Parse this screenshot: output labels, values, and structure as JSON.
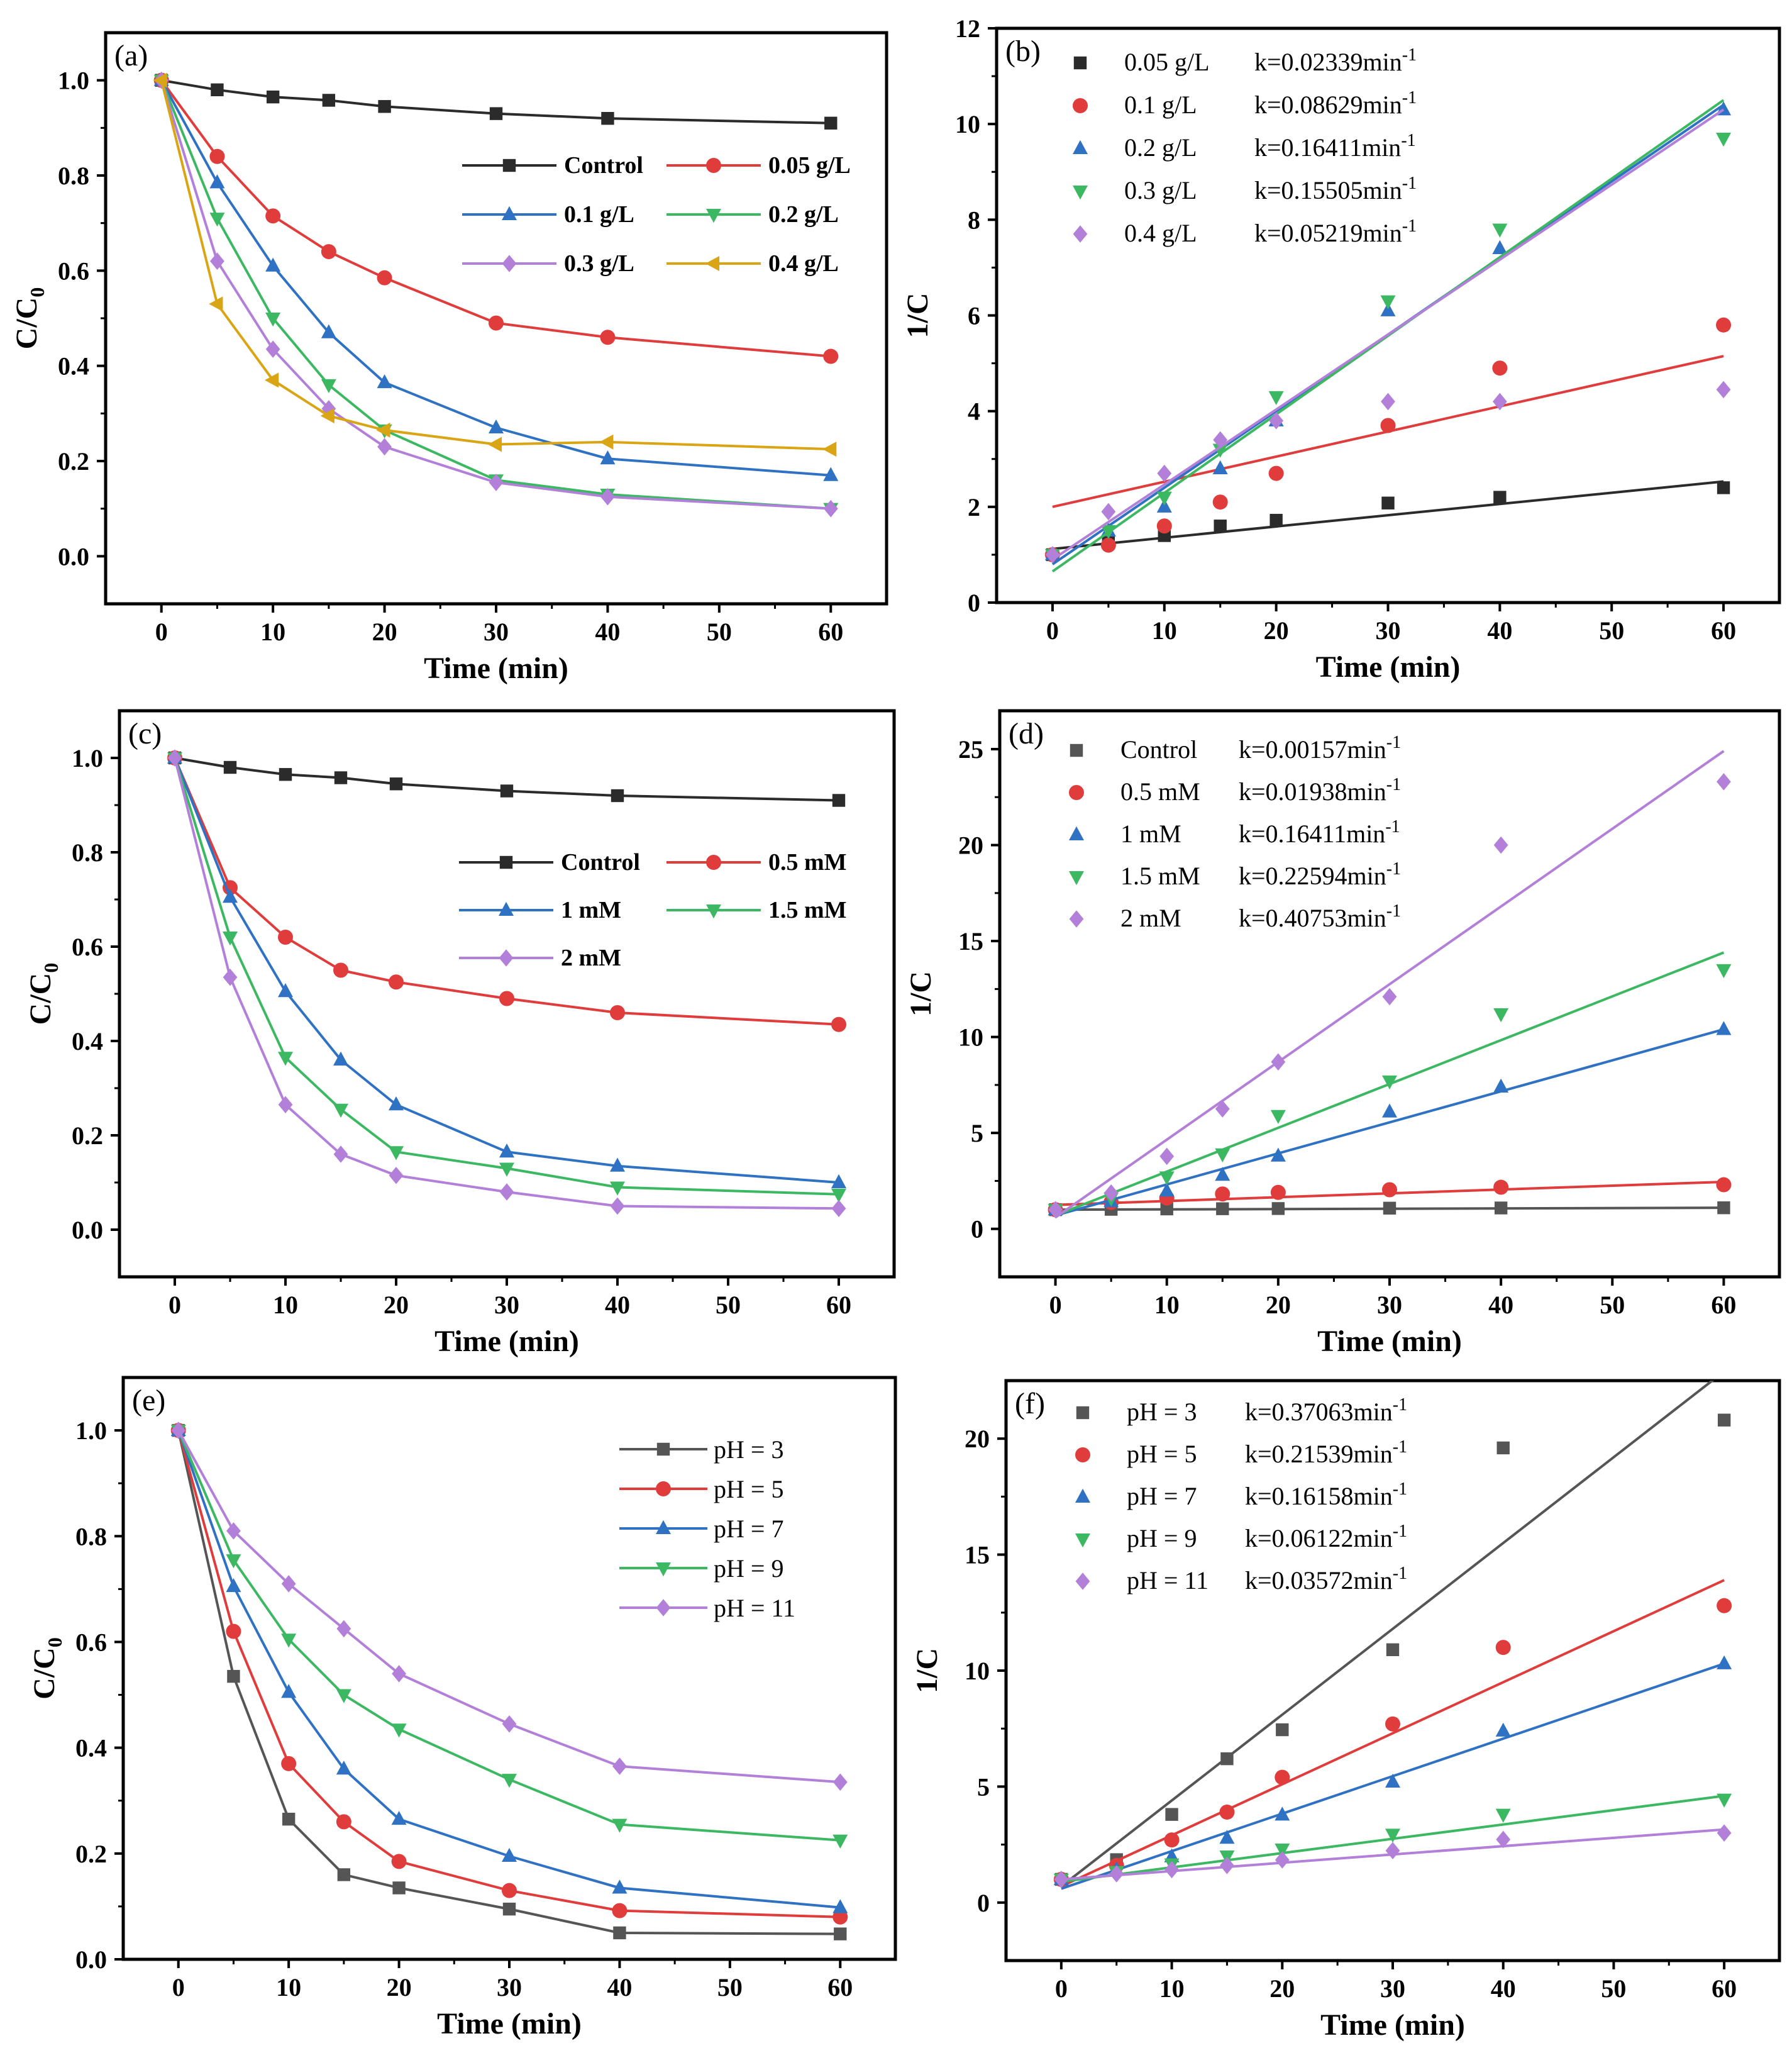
{
  "colors": {
    "black": "#2b2b2b",
    "red": "#e03c3c",
    "blue": "#2f72c4",
    "green": "#3cb862",
    "purple": "#b27fd9",
    "gold": "#d9a514",
    "gray": "#555555"
  },
  "chart_data": [
    {
      "id": "a",
      "type": "line",
      "panel_label": "(a)",
      "xlabel": "Time (min)",
      "ylabel_main": "C/C",
      "ylabel_sub": "0",
      "xlim": [
        -5,
        65
      ],
      "ylim": [
        -0.1,
        1.1
      ],
      "xticks": [
        0,
        10,
        20,
        30,
        40,
        50,
        60
      ],
      "xtick_labels": [
        "0",
        "10",
        "20",
        "30",
        "40",
        "50",
        "60"
      ],
      "yticks": [
        0.0,
        0.2,
        0.4,
        0.6,
        0.8,
        1.0
      ],
      "ytick_labels": [
        "0.0",
        "0.2",
        "0.4",
        "0.6",
        "0.8",
        "1.0"
      ],
      "x": [
        0,
        5,
        10,
        15,
        20,
        30,
        40,
        60
      ],
      "series": [
        {
          "name": "Control",
          "color": "black",
          "marker": "square",
          "values": [
            1.0,
            0.98,
            0.965,
            0.958,
            0.945,
            0.93,
            0.92,
            0.91
          ]
        },
        {
          "name": "0.05 g/L",
          "color": "red",
          "marker": "circle",
          "values": [
            1.0,
            0.84,
            0.715,
            0.64,
            0.585,
            0.49,
            0.46,
            0.42
          ]
        },
        {
          "name": "0.1 g/L",
          "color": "blue",
          "marker": "triangle-up",
          "values": [
            1.0,
            0.785,
            0.61,
            0.47,
            0.365,
            0.27,
            0.205,
            0.17
          ]
        },
        {
          "name": "0.2 g/L",
          "color": "green",
          "marker": "triangle-down",
          "values": [
            1.0,
            0.71,
            0.5,
            0.36,
            0.265,
            0.16,
            0.13,
            0.1
          ]
        },
        {
          "name": "0.3 g/L",
          "color": "purple",
          "marker": "diamond",
          "values": [
            1.0,
            0.62,
            0.435,
            0.31,
            0.23,
            0.155,
            0.125,
            0.1
          ]
        },
        {
          "name": "0.4 g/L",
          "color": "gold",
          "marker": "triangle-left",
          "values": [
            1.0,
            0.53,
            0.37,
            0.295,
            0.265,
            0.235,
            0.24,
            0.225
          ]
        }
      ],
      "legend_rows": [
        [
          "Control",
          "0.05 g/L"
        ],
        [
          "0.1 g/L",
          "0.2 g/L"
        ],
        [
          "0.3 g/L",
          "0.4 g/L"
        ]
      ]
    },
    {
      "id": "b",
      "type": "scatter",
      "panel_label": "(b)",
      "xlabel": "Time (min)",
      "ylabel": "1/C",
      "xlim": [
        -5,
        65
      ],
      "ylim": [
        0,
        12
      ],
      "xticks": [
        0,
        10,
        20,
        30,
        40,
        50,
        60
      ],
      "xtick_labels": [
        "0",
        "10",
        "20",
        "30",
        "40",
        "50",
        "60"
      ],
      "yticks": [
        0,
        2,
        4,
        6,
        8,
        10,
        12
      ],
      "ytick_labels": [
        "0",
        "2",
        "4",
        "6",
        "8",
        "10",
        "12"
      ],
      "x": [
        0,
        5,
        10,
        15,
        20,
        30,
        40,
        60
      ],
      "series": [
        {
          "name": "0.05 g/L",
          "k_text": "k=0.02339min",
          "color": "black",
          "marker": "square",
          "values": [
            1.0,
            1.25,
            1.4,
            1.6,
            1.72,
            2.08,
            2.2,
            2.4
          ],
          "fit": [
            1.12,
            2.53
          ]
        },
        {
          "name": "0.1 g/L",
          "k_text": "k=0.08629min",
          "color": "red",
          "marker": "circle",
          "values": [
            1.0,
            1.2,
            1.6,
            2.1,
            2.7,
            3.7,
            4.9,
            5.8
          ],
          "fit": [
            2.0,
            5.15
          ]
        },
        {
          "name": "0.2 g/L",
          "k_text": "k=0.16411min",
          "color": "blue",
          "marker": "triangle-up",
          "values": [
            1.0,
            1.5,
            2.0,
            2.8,
            3.8,
            6.1,
            7.4,
            10.3
          ],
          "fit": [
            0.8,
            10.4
          ]
        },
        {
          "name": "0.3 g/L",
          "k_text": "k=0.15505min",
          "color": "green",
          "marker": "triangle-down",
          "values": [
            1.0,
            1.5,
            2.2,
            3.2,
            4.3,
            6.3,
            7.8,
            9.7
          ],
          "fit": [
            0.65,
            10.5
          ]
        },
        {
          "name": "0.4 g/L",
          "k_text": "k=0.05219min",
          "color": "purple",
          "marker": "diamond",
          "values": [
            1.0,
            1.9,
            2.7,
            3.4,
            3.8,
            4.2,
            4.2,
            4.45
          ],
          "fit": [
            0.9,
            10.3
          ]
        }
      ],
      "k_superscript": "-1"
    },
    {
      "id": "c",
      "type": "line",
      "panel_label": "(c)",
      "xlabel": "Time (min)",
      "ylabel_main": "C/C",
      "ylabel_sub": "0",
      "xlim": [
        -5,
        65
      ],
      "ylim": [
        -0.1,
        1.1
      ],
      "xticks": [
        0,
        10,
        20,
        30,
        40,
        50,
        60
      ],
      "xtick_labels": [
        "0",
        "10",
        "20",
        "30",
        "40",
        "50",
        "60"
      ],
      "yticks": [
        0.0,
        0.2,
        0.4,
        0.6,
        0.8,
        1.0
      ],
      "ytick_labels": [
        "0.0",
        "0.2",
        "0.4",
        "0.6",
        "0.8",
        "1.0"
      ],
      "x": [
        0,
        5,
        10,
        15,
        20,
        30,
        40,
        60
      ],
      "series": [
        {
          "name": "Control",
          "color": "black",
          "marker": "square",
          "values": [
            1.0,
            0.98,
            0.965,
            0.958,
            0.945,
            0.93,
            0.92,
            0.91
          ]
        },
        {
          "name": "0.5 mM",
          "color": "red",
          "marker": "circle",
          "values": [
            1.0,
            0.725,
            0.62,
            0.55,
            0.525,
            0.49,
            0.46,
            0.435
          ]
        },
        {
          "name": "1 mM",
          "color": "blue",
          "marker": "triangle-up",
          "values": [
            1.0,
            0.705,
            0.505,
            0.36,
            0.265,
            0.165,
            0.135,
            0.1
          ]
        },
        {
          "name": "1.5 mM",
          "color": "green",
          "marker": "triangle-down",
          "values": [
            1.0,
            0.62,
            0.365,
            0.255,
            0.165,
            0.13,
            0.09,
            0.075
          ]
        },
        {
          "name": "2 mM",
          "color": "purple",
          "marker": "diamond",
          "values": [
            1.0,
            0.535,
            0.265,
            0.16,
            0.115,
            0.08,
            0.05,
            0.045
          ]
        }
      ],
      "legend_rows": [
        [
          "Control",
          "0.5 mM"
        ],
        [
          "1 mM",
          "1.5 mM"
        ],
        [
          "2 mM"
        ]
      ]
    },
    {
      "id": "d",
      "type": "scatter",
      "panel_label": "(d)",
      "xlabel": "Time (min)",
      "ylabel": "1/C",
      "xlim": [
        -5,
        65
      ],
      "ylim": [
        -2.5,
        27
      ],
      "xticks": [
        0,
        10,
        20,
        30,
        40,
        50,
        60
      ],
      "xtick_labels": [
        "0",
        "10",
        "20",
        "30",
        "40",
        "50",
        "60"
      ],
      "yticks": [
        0,
        5,
        10,
        15,
        20,
        25
      ],
      "ytick_labels": [
        "0",
        "5",
        "10",
        "15",
        "20",
        "25"
      ],
      "x": [
        0,
        5,
        10,
        15,
        20,
        30,
        40,
        60
      ],
      "series": [
        {
          "name": "Control",
          "k_text": "k=0.00157min",
          "color": "gray",
          "marker": "square",
          "values": [
            1.0,
            1.02,
            1.04,
            1.05,
            1.06,
            1.08,
            1.09,
            1.1
          ],
          "fit": [
            1.0,
            1.1
          ]
        },
        {
          "name": "0.5 mM",
          "k_text": "k=0.01938min",
          "color": "red",
          "marker": "circle",
          "values": [
            1.0,
            1.38,
            1.61,
            1.82,
            1.9,
            2.04,
            2.17,
            2.3
          ],
          "fit": [
            1.25,
            2.45
          ]
        },
        {
          "name": "1 mM",
          "k_text": "k=0.16411min",
          "color": "blue",
          "marker": "triangle-up",
          "values": [
            1.0,
            1.42,
            1.98,
            2.8,
            3.8,
            6.1,
            7.4,
            10.4
          ],
          "fit": [
            0.7,
            10.4
          ]
        },
        {
          "name": "1.5 mM",
          "k_text": "k=0.22594min",
          "color": "green",
          "marker": "triangle-down",
          "values": [
            1.0,
            1.6,
            2.7,
            3.9,
            5.9,
            7.7,
            11.2,
            13.5
          ],
          "fit": [
            0.7,
            14.4
          ]
        },
        {
          "name": "2 mM",
          "k_text": "k=0.40753min",
          "color": "purple",
          "marker": "diamond",
          "values": [
            1.0,
            1.87,
            3.78,
            6.25,
            8.7,
            12.1,
            20.0,
            23.3
          ],
          "fit": [
            0.6,
            24.9
          ]
        }
      ],
      "k_superscript": "-1"
    },
    {
      "id": "e",
      "type": "line",
      "panel_label": "(e)",
      "xlabel": "Time (min)",
      "ylabel_main": "C/C",
      "ylabel_sub": "0",
      "xlim": [
        -5,
        65
      ],
      "ylim": [
        0,
        1.1
      ],
      "xticks": [
        0,
        10,
        20,
        30,
        40,
        50,
        60
      ],
      "xtick_labels": [
        "0",
        "10",
        "20",
        "30",
        "40",
        "50",
        "60"
      ],
      "yticks": [
        0.0,
        0.2,
        0.4,
        0.6,
        0.8,
        1.0
      ],
      "ytick_labels": [
        "0.0",
        "0.2",
        "0.4",
        "0.6",
        "0.8",
        "1.0"
      ],
      "x": [
        0,
        5,
        10,
        15,
        20,
        30,
        40,
        60
      ],
      "series": [
        {
          "name": "pH = 3",
          "color": "gray",
          "marker": "square",
          "values": [
            1.0,
            0.535,
            0.265,
            0.16,
            0.135,
            0.095,
            0.05,
            0.048
          ]
        },
        {
          "name": "pH = 5",
          "color": "red",
          "marker": "circle",
          "values": [
            1.0,
            0.62,
            0.37,
            0.26,
            0.185,
            0.13,
            0.092,
            0.08
          ]
        },
        {
          "name": "pH = 7",
          "color": "blue",
          "marker": "triangle-up",
          "values": [
            1.0,
            0.705,
            0.505,
            0.36,
            0.265,
            0.195,
            0.135,
            0.098
          ]
        },
        {
          "name": "pH = 9",
          "color": "green",
          "marker": "triangle-down",
          "values": [
            1.0,
            0.755,
            0.605,
            0.5,
            0.435,
            0.34,
            0.255,
            0.225
          ]
        },
        {
          "name": "pH = 11",
          "color": "purple",
          "marker": "diamond",
          "values": [
            1.0,
            0.81,
            0.71,
            0.625,
            0.54,
            0.445,
            0.365,
            0.335
          ]
        }
      ]
    },
    {
      "id": "f",
      "type": "scatter",
      "panel_label": "(f)",
      "xlabel": "Time (min)",
      "ylabel": "1/C",
      "xlim": [
        -5,
        65
      ],
      "ylim": [
        -2.5,
        22.5
      ],
      "xticks": [
        0,
        10,
        20,
        30,
        40,
        50,
        60
      ],
      "xtick_labels": [
        "0",
        "10",
        "20",
        "30",
        "40",
        "50",
        "60"
      ],
      "yticks": [
        0,
        5,
        10,
        15,
        20
      ],
      "ytick_labels": [
        "0",
        "5",
        "10",
        "15",
        "20"
      ],
      "x": [
        0,
        5,
        10,
        15,
        20,
        30,
        40,
        60
      ],
      "series": [
        {
          "name": "pH = 3",
          "k_text": "k=0.37063min",
          "color": "gray",
          "marker": "square",
          "values": [
            1.0,
            1.85,
            3.8,
            6.2,
            7.45,
            10.9,
            19.6,
            20.8
          ],
          "fit": [
            0.7,
            22.9
          ]
        },
        {
          "name": "pH = 5",
          "k_text": "k=0.21539min",
          "color": "red",
          "marker": "circle",
          "values": [
            1.0,
            1.6,
            2.7,
            3.9,
            5.4,
            7.7,
            11.0,
            12.8
          ],
          "fit": [
            0.7,
            13.9
          ]
        },
        {
          "name": "pH = 7",
          "k_text": "k=0.16158min",
          "color": "blue",
          "marker": "triangle-up",
          "values": [
            1.0,
            1.42,
            1.98,
            2.78,
            3.78,
            5.2,
            7.4,
            10.3
          ],
          "fit": [
            0.6,
            10.3
          ]
        },
        {
          "name": "pH = 9",
          "k_text": "k=0.06122min",
          "color": "green",
          "marker": "triangle-down",
          "values": [
            1.0,
            1.33,
            1.66,
            2.0,
            2.3,
            2.94,
            3.8,
            4.45
          ],
          "fit": [
            0.9,
            4.6
          ]
        },
        {
          "name": "pH = 11",
          "k_text": "k=0.03572min",
          "color": "purple",
          "marker": "diamond",
          "values": [
            1.0,
            1.24,
            1.42,
            1.6,
            1.84,
            2.24,
            2.72,
            3.0
          ],
          "fit": [
            1.0,
            3.15
          ]
        }
      ],
      "k_superscript": "-1"
    }
  ]
}
